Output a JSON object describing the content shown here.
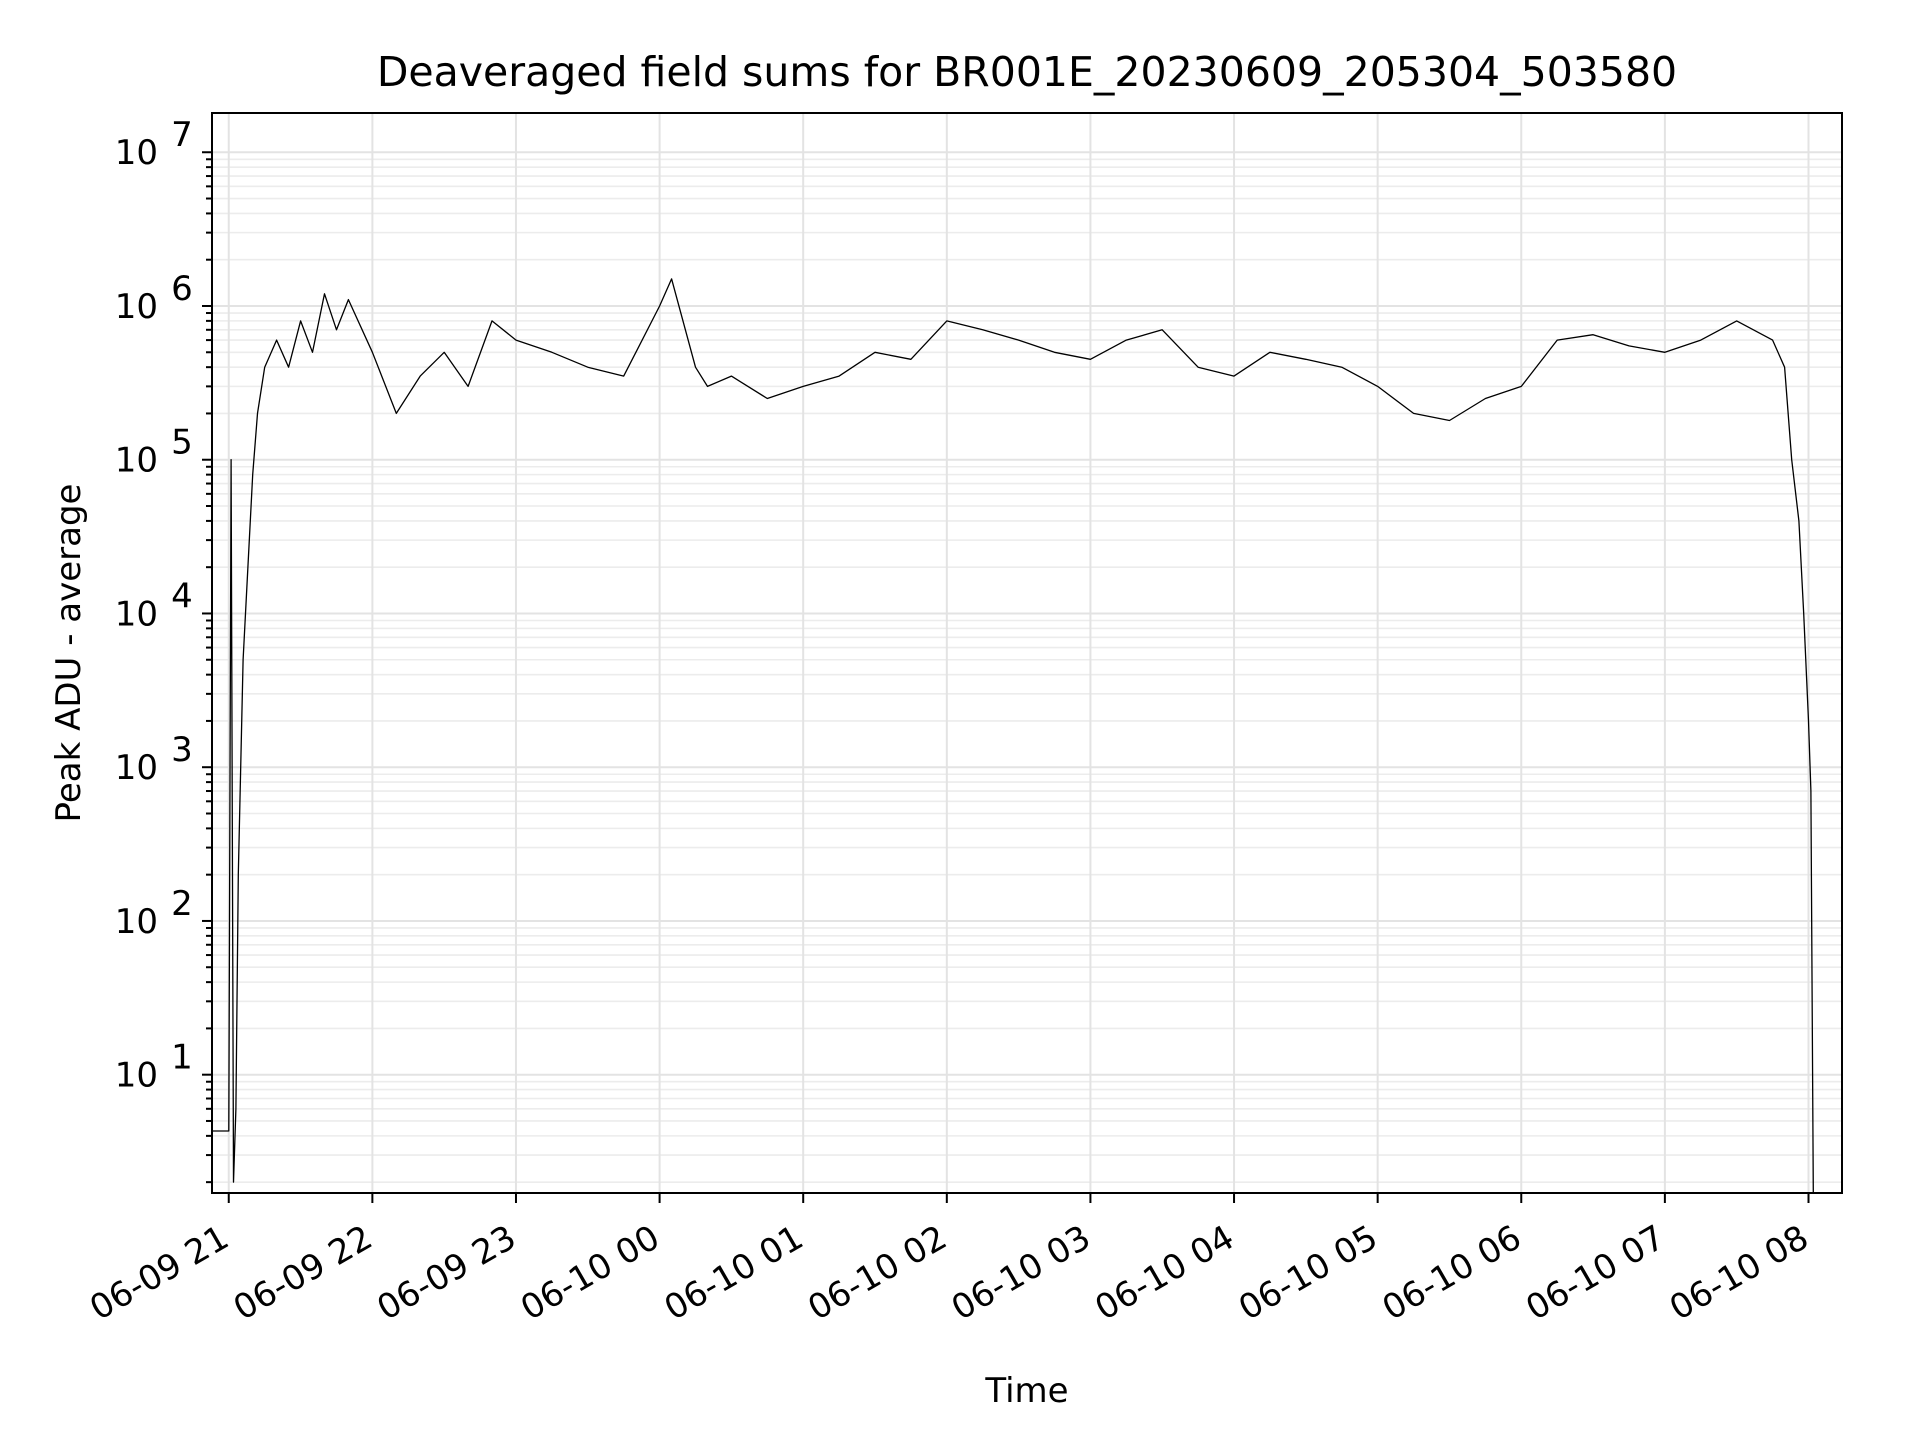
{
  "chart_data": {
    "type": "line",
    "title": "Deaveraged field sums for BR001E_20230609_205304_503580",
    "xlabel": "Time",
    "ylabel": "Peak ADU - average",
    "yscale": "log",
    "ylim": [
      1.7,
      18000000
    ],
    "xlim": [
      "2023-06-09 20:53",
      "2023-06-10 08:14"
    ],
    "grid": true,
    "x_ticks": [
      "06-09 21",
      "06-09 22",
      "06-09 23",
      "06-10 00",
      "06-10 01",
      "06-10 02",
      "06-10 03",
      "06-10 04",
      "06-10 05",
      "06-10 06",
      "06-10 07",
      "06-10 08"
    ],
    "y_ticks": [
      {
        "value": 10,
        "base": "10",
        "exp": "1"
      },
      {
        "value": 100,
        "base": "10",
        "exp": "2"
      },
      {
        "value": 1000,
        "base": "10",
        "exp": "3"
      },
      {
        "value": 10000,
        "base": "10",
        "exp": "4"
      },
      {
        "value": 100000,
        "base": "10",
        "exp": "5"
      },
      {
        "value": 1000000,
        "base": "10",
        "exp": "6"
      },
      {
        "value": 10000000,
        "base": "10",
        "exp": "7"
      }
    ],
    "series": [
      {
        "color": "#000000",
        "points": [
          [
            "2023-06-09 20:53",
            4.3
          ],
          [
            "2023-06-09 21:00",
            4.3
          ],
          [
            "2023-06-09 21:01",
            100000
          ],
          [
            "2023-06-09 21:02",
            2
          ],
          [
            "2023-06-09 21:03",
            6
          ],
          [
            "2023-06-09 21:04",
            200
          ],
          [
            "2023-06-09 21:05",
            1000
          ],
          [
            "2023-06-09 21:06",
            5000
          ],
          [
            "2023-06-09 21:08",
            20000
          ],
          [
            "2023-06-09 21:10",
            80000
          ],
          [
            "2023-06-09 21:12",
            200000
          ],
          [
            "2023-06-09 21:15",
            400000
          ],
          [
            "2023-06-09 21:20",
            600000
          ],
          [
            "2023-06-09 21:25",
            400000
          ],
          [
            "2023-06-09 21:30",
            800000
          ],
          [
            "2023-06-09 21:35",
            500000
          ],
          [
            "2023-06-09 21:40",
            1200000
          ],
          [
            "2023-06-09 21:45",
            700000
          ],
          [
            "2023-06-09 21:50",
            1100000
          ],
          [
            "2023-06-09 22:00",
            500000
          ],
          [
            "2023-06-09 22:10",
            200000
          ],
          [
            "2023-06-09 22:20",
            350000
          ],
          [
            "2023-06-09 22:30",
            500000
          ],
          [
            "2023-06-09 22:40",
            300000
          ],
          [
            "2023-06-09 22:50",
            800000
          ],
          [
            "2023-06-09 23:00",
            600000
          ],
          [
            "2023-06-09 23:15",
            500000
          ],
          [
            "2023-06-09 23:30",
            400000
          ],
          [
            "2023-06-09 23:45",
            350000
          ],
          [
            "2023-06-10 00:00",
            1000000
          ],
          [
            "2023-06-10 00:05",
            1500000
          ],
          [
            "2023-06-10 00:15",
            400000
          ],
          [
            "2023-06-10 00:20",
            300000
          ],
          [
            "2023-06-10 00:30",
            350000
          ],
          [
            "2023-06-10 00:45",
            250000
          ],
          [
            "2023-06-10 01:00",
            300000
          ],
          [
            "2023-06-10 01:15",
            350000
          ],
          [
            "2023-06-10 01:30",
            500000
          ],
          [
            "2023-06-10 01:45",
            450000
          ],
          [
            "2023-06-10 02:00",
            800000
          ],
          [
            "2023-06-10 02:15",
            700000
          ],
          [
            "2023-06-10 02:30",
            600000
          ],
          [
            "2023-06-10 02:45",
            500000
          ],
          [
            "2023-06-10 03:00",
            450000
          ],
          [
            "2023-06-10 03:15",
            600000
          ],
          [
            "2023-06-10 03:30",
            700000
          ],
          [
            "2023-06-10 03:45",
            400000
          ],
          [
            "2023-06-10 04:00",
            350000
          ],
          [
            "2023-06-10 04:15",
            500000
          ],
          [
            "2023-06-10 04:30",
            450000
          ],
          [
            "2023-06-10 04:45",
            400000
          ],
          [
            "2023-06-10 05:00",
            300000
          ],
          [
            "2023-06-10 05:15",
            200000
          ],
          [
            "2023-06-10 05:30",
            180000
          ],
          [
            "2023-06-10 05:45",
            250000
          ],
          [
            "2023-06-10 06:00",
            300000
          ],
          [
            "2023-06-10 06:15",
            600000
          ],
          [
            "2023-06-10 06:30",
            650000
          ],
          [
            "2023-06-10 06:45",
            550000
          ],
          [
            "2023-06-10 07:00",
            500000
          ],
          [
            "2023-06-10 07:15",
            600000
          ],
          [
            "2023-06-10 07:30",
            800000
          ],
          [
            "2023-06-10 07:45",
            600000
          ],
          [
            "2023-06-10 07:50",
            400000
          ],
          [
            "2023-06-10 07:53",
            100000
          ],
          [
            "2023-06-10 07:56",
            40000
          ],
          [
            "2023-06-10 07:58",
            10000
          ],
          [
            "2023-06-10 08:00",
            2000
          ],
          [
            "2023-06-10 08:01",
            700
          ],
          [
            "2023-06-10 08:02",
            1.7
          ]
        ]
      }
    ]
  }
}
